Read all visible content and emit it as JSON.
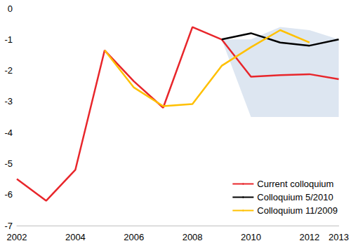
{
  "chart_data": {
    "type": "line",
    "xlim": [
      2002,
      2013
    ],
    "xticks": [
      2002,
      2004,
      2006,
      2008,
      2010,
      2012
    ],
    "ylim": [
      -7,
      0
    ],
    "yticks": [
      -7,
      -6,
      -5,
      -4,
      -3,
      -2,
      -1,
      0
    ],
    "grid": false,
    "legend": "lower right",
    "band": {
      "x": [
        2009,
        2010,
        2011,
        2012,
        2013
      ],
      "lower": [
        -1.0,
        -3.5,
        -3.5,
        -3.5,
        -3.5
      ],
      "upper": [
        -1.0,
        -1.0,
        -0.6,
        -0.7,
        -1.0
      ],
      "color": "#dde6f1"
    },
    "series": [
      {
        "name": "Current colloquium",
        "color": "#e8262b",
        "x": [
          2002,
          2003,
          2004,
          2005,
          2006,
          2007,
          2008,
          2009,
          2010,
          2011,
          2012,
          2013
        ],
        "values": [
          -5.5,
          -6.2,
          -5.2,
          -1.35,
          -2.35,
          -3.2,
          -0.6,
          -1.0,
          -2.2,
          -2.15,
          -2.12,
          -2.28
        ]
      },
      {
        "name": "Colloquium 5/2010",
        "color": "#000000",
        "x": [
          2009,
          2010,
          2011,
          2012,
          2013
        ],
        "values": [
          -1.0,
          -0.8,
          -1.1,
          -1.2,
          -1.0
        ]
      },
      {
        "name": "Colloquium 11/2009",
        "color": "#ffc000",
        "x": [
          2005,
          2006,
          2007,
          2008,
          2009,
          2010,
          2011,
          2012
        ],
        "values": [
          -1.35,
          -2.55,
          -3.15,
          -3.08,
          -1.85,
          -1.25,
          -0.7,
          -1.1
        ]
      }
    ]
  }
}
